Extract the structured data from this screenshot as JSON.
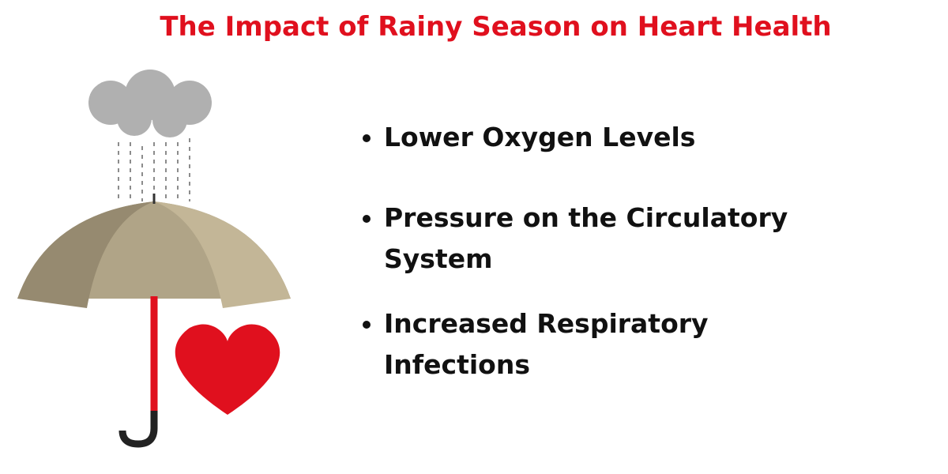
{
  "header": {
    "title": "The Impact of Rainy Season on Heart Health"
  },
  "list": {
    "items": [
      "Lower Oxygen Levels",
      "Pressure on the Circulatory System",
      "Increased Respiratory Infections"
    ]
  }
}
